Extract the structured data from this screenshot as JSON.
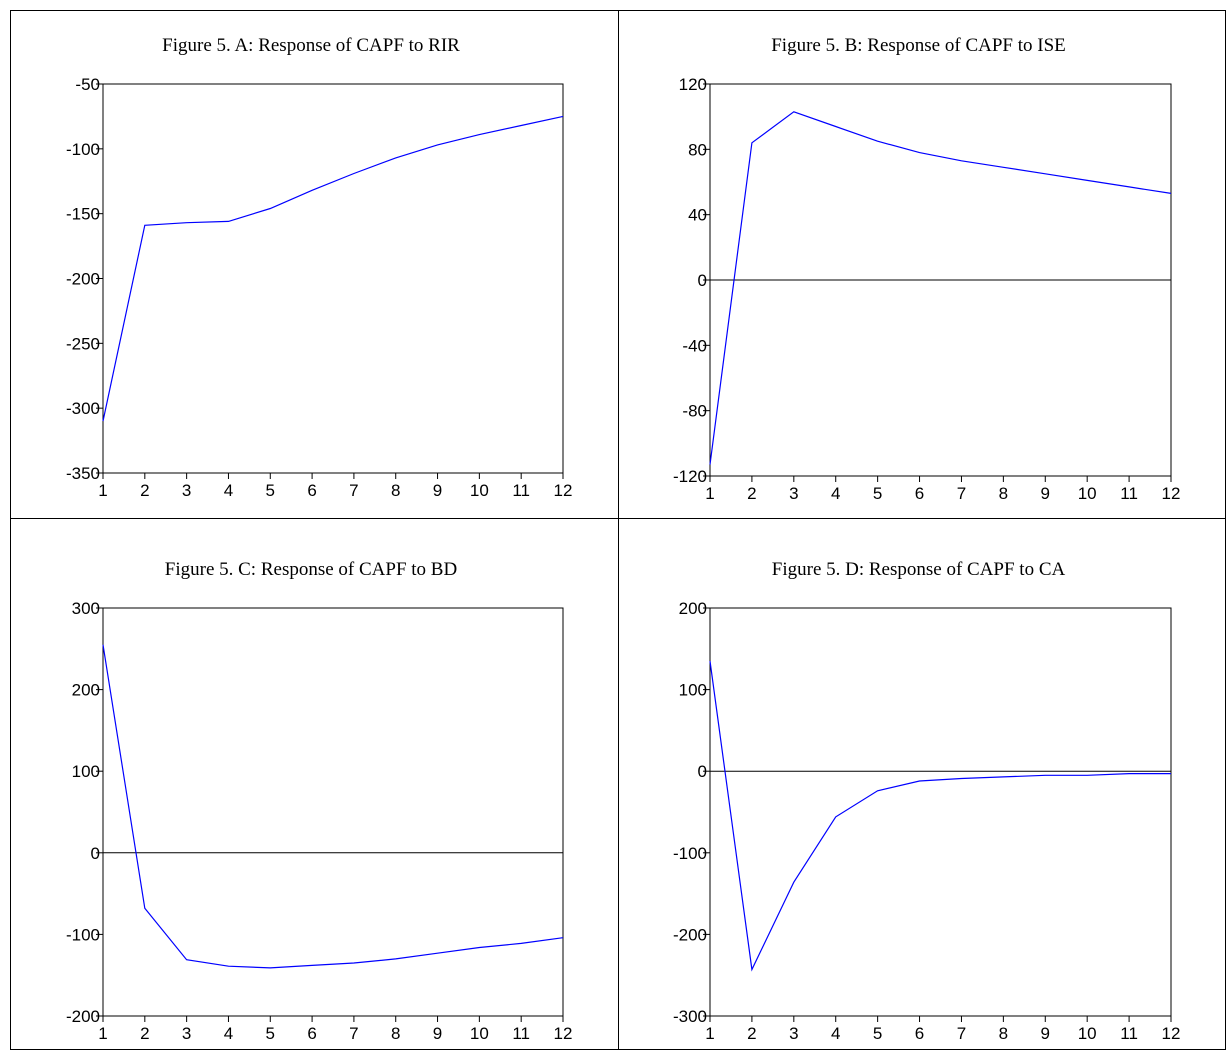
{
  "colors": {
    "series": "#0000ff",
    "axis": "#000000"
  },
  "chart_data": [
    {
      "type": "line",
      "title": "Figure 5. A: Response of CAPF to RIR",
      "xlabel": "",
      "ylabel": "",
      "x": [
        1,
        2,
        3,
        4,
        5,
        6,
        7,
        8,
        9,
        10,
        11,
        12
      ],
      "series": [
        {
          "values": [
            -310,
            -159,
            -157,
            -156,
            -146,
            -132,
            -119,
            -107,
            -97,
            -89,
            -82,
            -75
          ]
        }
      ],
      "ylim": [
        -350,
        -50
      ],
      "yticks": [
        -350,
        -300,
        -250,
        -200,
        -150,
        -100,
        -50
      ],
      "xticks": [
        1,
        2,
        3,
        4,
        5,
        6,
        7,
        8,
        9,
        10,
        11,
        12
      ],
      "zero_line": false,
      "grid": false
    },
    {
      "type": "line",
      "title": "Figure 5. B: Response of CAPF to ISE",
      "xlabel": "",
      "ylabel": "",
      "x": [
        1,
        2,
        3,
        4,
        5,
        6,
        7,
        8,
        9,
        10,
        11,
        12
      ],
      "series": [
        {
          "values": [
            -113,
            84,
            103,
            94,
            85,
            78,
            73,
            69,
            65,
            61,
            57,
            53
          ]
        }
      ],
      "ylim": [
        -120,
        120
      ],
      "yticks": [
        -120,
        -80,
        -40,
        0,
        40,
        80,
        120
      ],
      "xticks": [
        1,
        2,
        3,
        4,
        5,
        6,
        7,
        8,
        9,
        10,
        11,
        12
      ],
      "zero_line": true,
      "grid": false
    },
    {
      "type": "line",
      "title": "Figure 5. C: Response of CAPF to BD",
      "xlabel": "",
      "ylabel": "",
      "x": [
        1,
        2,
        3,
        4,
        5,
        6,
        7,
        8,
        9,
        10,
        11,
        12
      ],
      "series": [
        {
          "values": [
            255,
            -68,
            -131,
            -139,
            -141,
            -138,
            -135,
            -130,
            -123,
            -116,
            -111,
            -104
          ]
        }
      ],
      "ylim": [
        -200,
        300
      ],
      "yticks": [
        -200,
        -100,
        0,
        100,
        200,
        300
      ],
      "xticks": [
        1,
        2,
        3,
        4,
        5,
        6,
        7,
        8,
        9,
        10,
        11,
        12
      ],
      "zero_line": true,
      "grid": false
    },
    {
      "type": "line",
      "title": "Figure 5. D: Response of CAPF to CA",
      "xlabel": "",
      "ylabel": "",
      "x": [
        1,
        2,
        3,
        4,
        5,
        6,
        7,
        8,
        9,
        10,
        11,
        12
      ],
      "series": [
        {
          "values": [
            135,
            -243,
            -136,
            -56,
            -24,
            -12,
            -9,
            -7,
            -5,
            -5,
            -3,
            -3
          ]
        }
      ],
      "ylim": [
        -300,
        200
      ],
      "yticks": [
        -300,
        -200,
        -100,
        0,
        100,
        200
      ],
      "xticks": [
        1,
        2,
        3,
        4,
        5,
        6,
        7,
        8,
        9,
        10,
        11,
        12
      ],
      "zero_line": true,
      "grid": false
    }
  ]
}
